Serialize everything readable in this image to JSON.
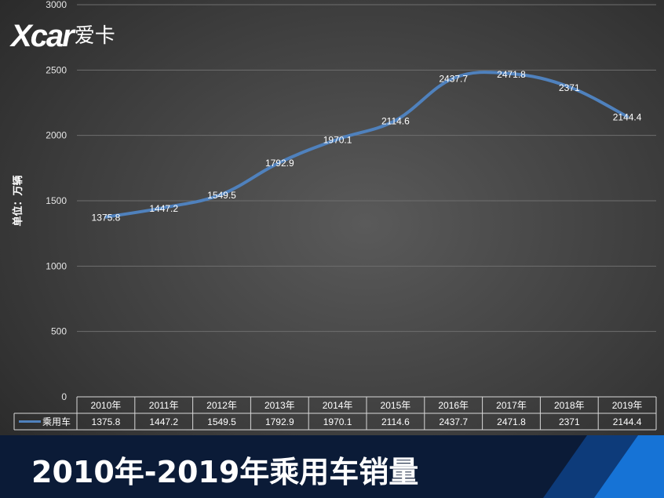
{
  "logo": {
    "mark": "Xcar",
    "text": "爱卡"
  },
  "banner": {
    "title": "2010年-2019年乘用车销量"
  },
  "colors": {
    "series": "#4f81bd",
    "banner_bg": "#0b1b37",
    "stripe_dark": "#0d3b7a",
    "stripe_light": "#1673d6"
  },
  "chart_data": {
    "type": "line",
    "title": "",
    "ylabel": "单位：万辆",
    "xlabel": "",
    "ylim": [
      0,
      3000
    ],
    "yticks": [
      0,
      500,
      1000,
      1500,
      2000,
      2500,
      3000
    ],
    "categories": [
      "2010年",
      "2011年",
      "2012年",
      "2013年",
      "2014年",
      "2015年",
      "2016年",
      "2017年",
      "2018年",
      "2019年"
    ],
    "series": [
      {
        "name": "乘用车",
        "values": [
          1375.8,
          1447.2,
          1549.5,
          1792.9,
          1970.1,
          2114.6,
          2437.7,
          2471.8,
          2371,
          2144.4
        ],
        "labels": [
          "1375.8",
          "1447.2",
          "1549.5",
          "1792.9",
          "1970.1",
          "2114.6",
          "2437.7",
          "2471.8",
          "2371",
          "2144.4"
        ]
      }
    ],
    "grid": true,
    "data_table": true,
    "legend": "data-table"
  }
}
